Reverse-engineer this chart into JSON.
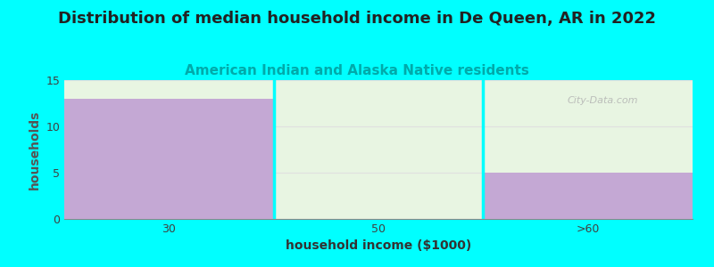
{
  "title": "Distribution of median household income in De Queen, AR in 2022",
  "subtitle": "American Indian and Alaska Native residents",
  "xlabel": "household income ($1000)",
  "ylabel": "households",
  "categories": [
    "30",
    "50",
    ">60"
  ],
  "values": [
    13,
    0,
    5
  ],
  "bar_color": "#c4a8d4",
  "ylim": [
    0,
    15
  ],
  "yticks": [
    0,
    5,
    10,
    15
  ],
  "background_color": "#00ffff",
  "plot_bg_top": "#e8f5e2",
  "plot_bg_bottom": "#f5fff5",
  "grid_color": "#e0e0e0",
  "title_fontsize": 13,
  "subtitle_fontsize": 11,
  "subtitle_color": "#00aaaa",
  "title_color": "#222222",
  "axis_label_fontsize": 10,
  "tick_fontsize": 9,
  "ylabel_color": "#555555",
  "watermark": "City-Data.com"
}
